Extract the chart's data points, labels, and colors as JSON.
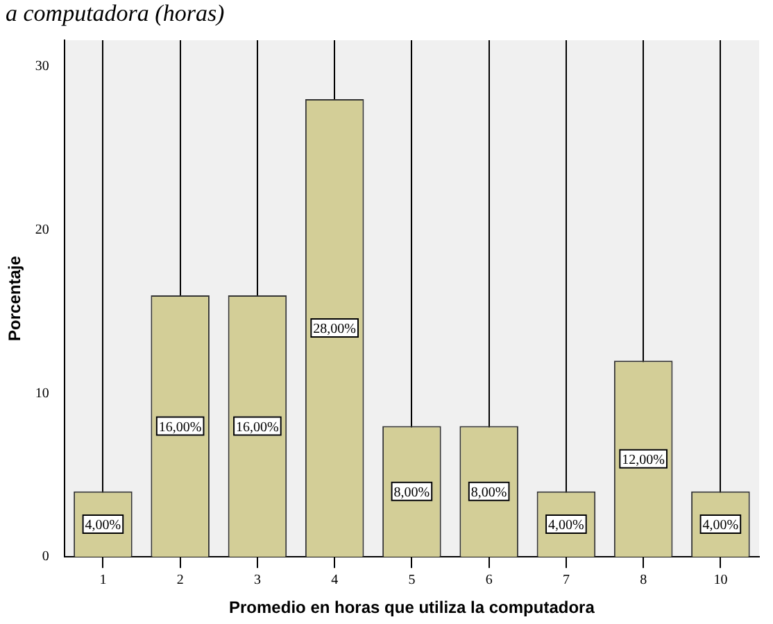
{
  "chart_data": {
    "type": "bar",
    "title": "a computadora (horas)",
    "xlabel": "Promedio en horas que utiliza la computadora",
    "ylabel": "Porcentaje",
    "categories": [
      "1",
      "2",
      "3",
      "4",
      "5",
      "6",
      "7",
      "8",
      "10"
    ],
    "values": [
      4,
      16,
      16,
      28,
      8,
      8,
      4,
      12,
      4
    ],
    "value_labels": [
      "4,00%",
      "16,00%",
      "16,00%",
      "28,00%",
      "8,00%",
      "8,00%",
      "4,00%",
      "12,00%",
      "4,00%"
    ],
    "color": "#d3ce97",
    "ylim": [
      0,
      31.6
    ],
    "yticks": [
      0,
      10,
      20,
      30
    ],
    "grid": "x",
    "legend": false
  }
}
